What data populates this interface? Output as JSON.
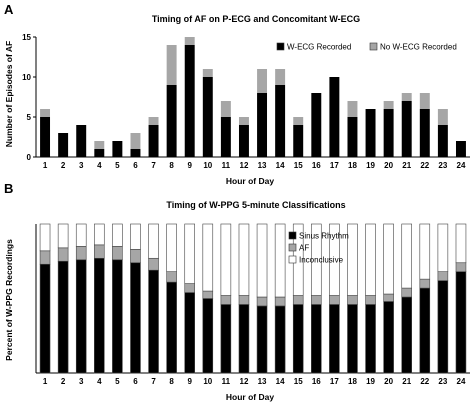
{
  "figure": {
    "panel_a_label": "A",
    "panel_b_label": "B"
  },
  "chart_data": [
    {
      "type": "bar",
      "stacked": true,
      "title": "Timing of AF on P-ECG and Concomitant W-ECG",
      "xlabel": "Hour of Day",
      "ylabel": "Number of Episodes of AF",
      "ylim": [
        0,
        15
      ],
      "yticks": [
        0,
        5,
        10,
        15
      ],
      "grid": false,
      "legend_position": "top-right",
      "categories": [
        "1",
        "2",
        "3",
        "4",
        "5",
        "6",
        "7",
        "8",
        "9",
        "10",
        "11",
        "12",
        "13",
        "14",
        "15",
        "16",
        "17",
        "18",
        "19",
        "20",
        "21",
        "22",
        "23",
        "24"
      ],
      "series": [
        {
          "name": "W-ECG Recorded",
          "color": "#000000",
          "values": [
            5,
            3,
            4,
            1,
            2,
            1,
            4,
            9,
            14,
            10,
            5,
            4,
            8,
            9,
            4,
            8,
            10,
            5,
            6,
            6,
            7,
            6,
            4,
            2
          ]
        },
        {
          "name": "No W-ECG Recorded",
          "color": "#a6a6a6",
          "values": [
            1,
            0,
            0,
            1,
            0,
            2,
            1,
            5,
            1,
            1,
            2,
            1,
            3,
            2,
            1,
            0,
            0,
            2,
            0,
            1,
            1,
            2,
            2,
            0
          ]
        }
      ]
    },
    {
      "type": "bar",
      "stacked": true,
      "title": "Timing of W-PPG 5-minute Classifications",
      "xlabel": "Hour of Day",
      "ylabel": "Percent of W-PPG Recordings",
      "ylim": [
        0,
        1
      ],
      "grid": false,
      "legend_position": "top-right",
      "categories": [
        "1",
        "2",
        "3",
        "4",
        "5",
        "6",
        "7",
        "8",
        "9",
        "10",
        "11",
        "12",
        "13",
        "14",
        "15",
        "16",
        "17",
        "18",
        "19",
        "20",
        "21",
        "22",
        "23",
        "24"
      ],
      "series": [
        {
          "name": "Sinus Rhythm",
          "color": "#000000",
          "values": [
            0.73,
            0.75,
            0.76,
            0.77,
            0.76,
            0.74,
            0.69,
            0.61,
            0.54,
            0.5,
            0.46,
            0.46,
            0.45,
            0.45,
            0.46,
            0.46,
            0.46,
            0.46,
            0.46,
            0.48,
            0.51,
            0.57,
            0.62,
            0.68
          ]
        },
        {
          "name": "AF",
          "color": "#a6a6a6",
          "values": [
            0.09,
            0.09,
            0.09,
            0.09,
            0.09,
            0.09,
            0.08,
            0.07,
            0.06,
            0.05,
            0.06,
            0.06,
            0.06,
            0.06,
            0.06,
            0.06,
            0.06,
            0.06,
            0.06,
            0.05,
            0.06,
            0.06,
            0.06,
            0.06
          ]
        },
        {
          "name": "Inconclusive",
          "color": "#ffffff",
          "values": [
            0.18,
            0.16,
            0.15,
            0.14,
            0.15,
            0.17,
            0.23,
            0.32,
            0.4,
            0.45,
            0.48,
            0.48,
            0.49,
            0.49,
            0.48,
            0.48,
            0.48,
            0.48,
            0.48,
            0.47,
            0.43,
            0.37,
            0.32,
            0.26
          ]
        }
      ]
    }
  ]
}
